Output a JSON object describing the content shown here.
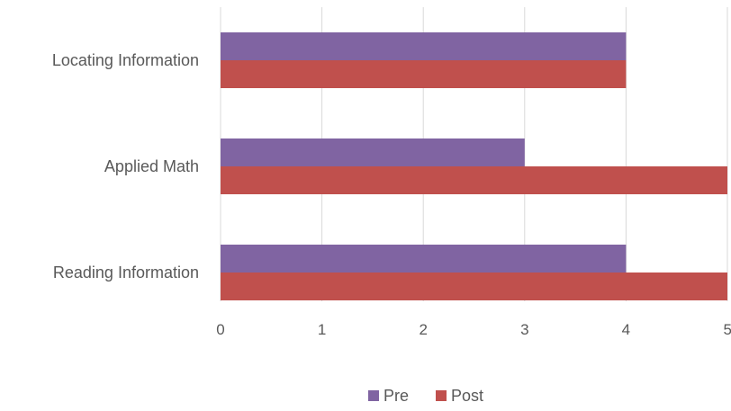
{
  "chart_data": {
    "type": "bar",
    "orientation": "horizontal",
    "categories": [
      "Locating Information",
      "Applied Math",
      "Reading Information"
    ],
    "series": [
      {
        "name": "Pre",
        "values": [
          4,
          3,
          4
        ],
        "color": "#8064a2"
      },
      {
        "name": "Post",
        "values": [
          4,
          5,
          5
        ],
        "color": "#c0504d"
      }
    ],
    "xlim": [
      0,
      5
    ],
    "xticks": [
      "0",
      "1",
      "2",
      "3",
      "4",
      "5"
    ],
    "grid": "vertical",
    "legend": "bottom"
  }
}
